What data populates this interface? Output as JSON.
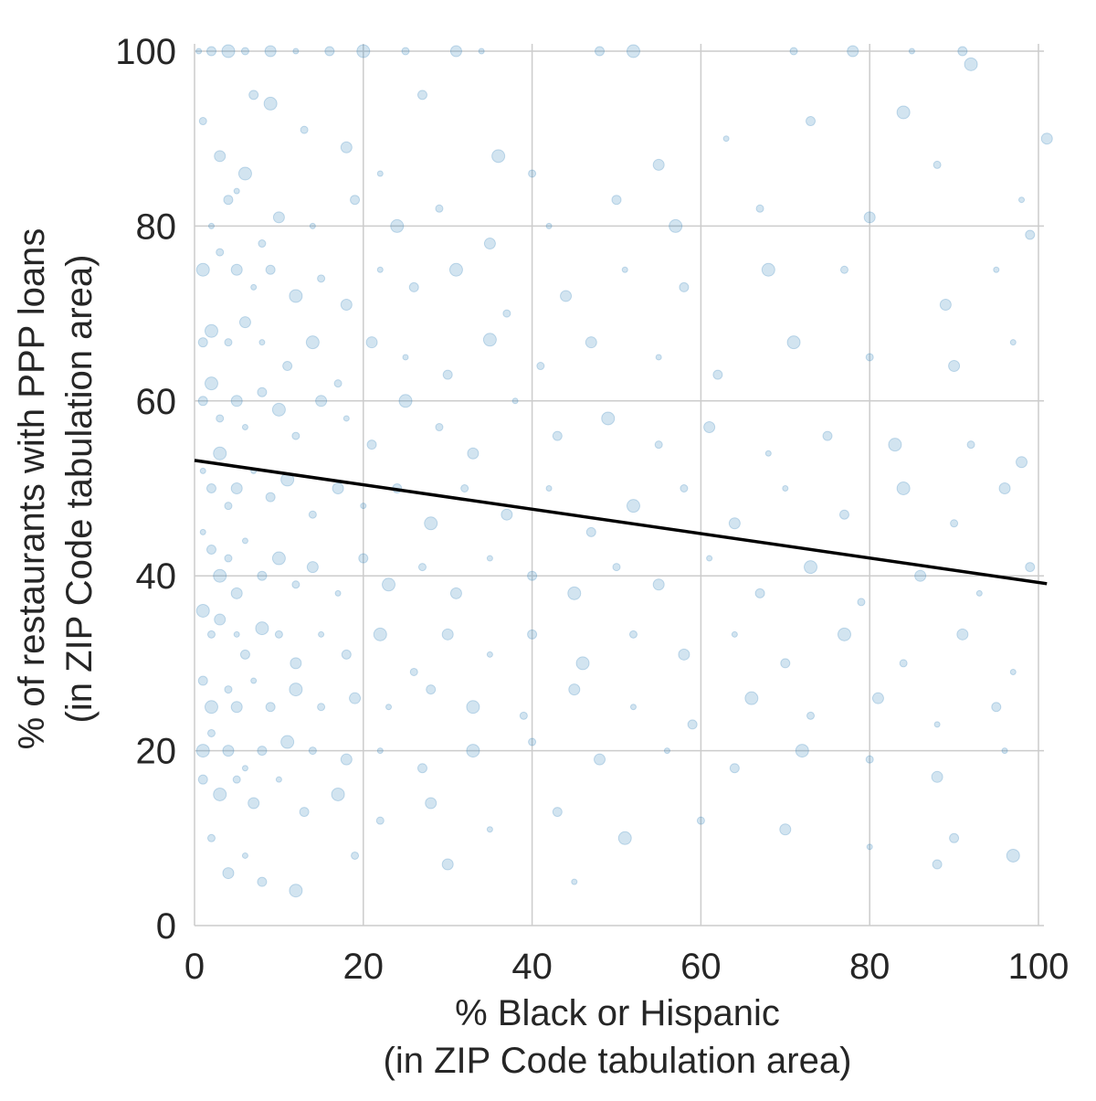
{
  "chart_data": {
    "type": "scatter",
    "title": "",
    "xlabel_lines": [
      "% Black or Hispanic",
      "(in ZIP Code tabulation area)"
    ],
    "ylabel_lines": [
      "% of restaurants with PPP loans",
      "(in ZIP Code tabulation area)"
    ],
    "xlim": [
      0,
      100
    ],
    "ylim": [
      0,
      100
    ],
    "xticks": [
      "0",
      "20",
      "40",
      "60",
      "80",
      "100"
    ],
    "yticks": [
      "0",
      "20",
      "40",
      "60",
      "80",
      "100"
    ],
    "grid": true,
    "legend": "none",
    "colors": {
      "points": "#1f77b4",
      "trendline": "#000000",
      "grid": "#cccccc"
    },
    "point_opacity": 0.2,
    "series": [
      {
        "type": "scatter",
        "note": "dense cloud of ZIP Code tabulation areas; concentrated at low x with y mostly between 20 and 70; visible horizontal bands at y = 16.7, 20, 25, 33.3, 40, 50, 66.7, 75, 80, 100",
        "points": [
          [
            0.5,
            100
          ],
          [
            2,
            100
          ],
          [
            4,
            100
          ],
          [
            6,
            100
          ],
          [
            9,
            100
          ],
          [
            12,
            100
          ],
          [
            16,
            100
          ],
          [
            20,
            100
          ],
          [
            25,
            100
          ],
          [
            31,
            100
          ],
          [
            34,
            100
          ],
          [
            48,
            100
          ],
          [
            52,
            100
          ],
          [
            71,
            100
          ],
          [
            78,
            100
          ],
          [
            85,
            100
          ],
          [
            91,
            100
          ],
          [
            92,
            98.5
          ],
          [
            1,
            92
          ],
          [
            3,
            88
          ],
          [
            5,
            84
          ],
          [
            7,
            95
          ],
          [
            9,
            94
          ],
          [
            13,
            91
          ],
          [
            18,
            89
          ],
          [
            22,
            86
          ],
          [
            27,
            95
          ],
          [
            36,
            88
          ],
          [
            40,
            86
          ],
          [
            55,
            87
          ],
          [
            63,
            90
          ],
          [
            73,
            92
          ],
          [
            84,
            93
          ],
          [
            88,
            87
          ],
          [
            101,
            90
          ],
          [
            2,
            80
          ],
          [
            4,
            83
          ],
          [
            6,
            86
          ],
          [
            8,
            78
          ],
          [
            10,
            81
          ],
          [
            14,
            80
          ],
          [
            19,
            83
          ],
          [
            24,
            80
          ],
          [
            29,
            82
          ],
          [
            35,
            78
          ],
          [
            42,
            80
          ],
          [
            50,
            83
          ],
          [
            57,
            80
          ],
          [
            67,
            82
          ],
          [
            80,
            81
          ],
          [
            98,
            83
          ],
          [
            99,
            79
          ],
          [
            1,
            75
          ],
          [
            3,
            77
          ],
          [
            5,
            75
          ],
          [
            7,
            73
          ],
          [
            9,
            75
          ],
          [
            12,
            72
          ],
          [
            15,
            74
          ],
          [
            18,
            71
          ],
          [
            22,
            75
          ],
          [
            26,
            73
          ],
          [
            31,
            75
          ],
          [
            37,
            70
          ],
          [
            44,
            72
          ],
          [
            51,
            75
          ],
          [
            58,
            73
          ],
          [
            68,
            75
          ],
          [
            77,
            75
          ],
          [
            89,
            71
          ],
          [
            95,
            75
          ],
          [
            1,
            66.7
          ],
          [
            2,
            68
          ],
          [
            4,
            66.7
          ],
          [
            6,
            69
          ],
          [
            8,
            66.7
          ],
          [
            11,
            64
          ],
          [
            14,
            66.7
          ],
          [
            17,
            62
          ],
          [
            21,
            66.7
          ],
          [
            25,
            65
          ],
          [
            30,
            63
          ],
          [
            35,
            67
          ],
          [
            41,
            64
          ],
          [
            47,
            66.7
          ],
          [
            55,
            65
          ],
          [
            62,
            63
          ],
          [
            71,
            66.7
          ],
          [
            80,
            65
          ],
          [
            90,
            64
          ],
          [
            97,
            66.7
          ],
          [
            1,
            60
          ],
          [
            2,
            62
          ],
          [
            3,
            58
          ],
          [
            5,
            60
          ],
          [
            6,
            57
          ],
          [
            8,
            61
          ],
          [
            10,
            59
          ],
          [
            12,
            56
          ],
          [
            15,
            60
          ],
          [
            18,
            58
          ],
          [
            21,
            55
          ],
          [
            25,
            60
          ],
          [
            29,
            57
          ],
          [
            33,
            54
          ],
          [
            38,
            60
          ],
          [
            43,
            56
          ],
          [
            49,
            58
          ],
          [
            55,
            55
          ],
          [
            61,
            57
          ],
          [
            68,
            54
          ],
          [
            75,
            56
          ],
          [
            83,
            55
          ],
          [
            92,
            55
          ],
          [
            98,
            53
          ],
          [
            1,
            52
          ],
          [
            2,
            50
          ],
          [
            3,
            54
          ],
          [
            4,
            48
          ],
          [
            5,
            50
          ],
          [
            7,
            52
          ],
          [
            9,
            49
          ],
          [
            11,
            51
          ],
          [
            14,
            47
          ],
          [
            17,
            50
          ],
          [
            20,
            48
          ],
          [
            24,
            50
          ],
          [
            28,
            46
          ],
          [
            32,
            50
          ],
          [
            37,
            47
          ],
          [
            42,
            50
          ],
          [
            47,
            45
          ],
          [
            52,
            48
          ],
          [
            58,
            50
          ],
          [
            64,
            46
          ],
          [
            70,
            50
          ],
          [
            77,
            47
          ],
          [
            84,
            50
          ],
          [
            90,
            46
          ],
          [
            96,
            50
          ],
          [
            1,
            45
          ],
          [
            2,
            43
          ],
          [
            3,
            40
          ],
          [
            4,
            42
          ],
          [
            5,
            38
          ],
          [
            6,
            44
          ],
          [
            8,
            40
          ],
          [
            10,
            42
          ],
          [
            12,
            39
          ],
          [
            14,
            41
          ],
          [
            17,
            38
          ],
          [
            20,
            42
          ],
          [
            23,
            39
          ],
          [
            27,
            41
          ],
          [
            31,
            38
          ],
          [
            35,
            42
          ],
          [
            40,
            40
          ],
          [
            45,
            38
          ],
          [
            50,
            41
          ],
          [
            55,
            39
          ],
          [
            61,
            42
          ],
          [
            67,
            38
          ],
          [
            73,
            41
          ],
          [
            79,
            37
          ],
          [
            86,
            40
          ],
          [
            93,
            38
          ],
          [
            99,
            41
          ],
          [
            1,
            36
          ],
          [
            2,
            33.3
          ],
          [
            3,
            35
          ],
          [
            5,
            33.3
          ],
          [
            6,
            31
          ],
          [
            8,
            34
          ],
          [
            10,
            33.3
          ],
          [
            12,
            30
          ],
          [
            15,
            33.3
          ],
          [
            18,
            31
          ],
          [
            22,
            33.3
          ],
          [
            26,
            29
          ],
          [
            30,
            33.3
          ],
          [
            35,
            31
          ],
          [
            40,
            33.3
          ],
          [
            46,
            30
          ],
          [
            52,
            33.3
          ],
          [
            58,
            31
          ],
          [
            64,
            33.3
          ],
          [
            70,
            30
          ],
          [
            77,
            33.3
          ],
          [
            84,
            30
          ],
          [
            91,
            33.3
          ],
          [
            97,
            29
          ],
          [
            1,
            28
          ],
          [
            2,
            25
          ],
          [
            4,
            27
          ],
          [
            5,
            25
          ],
          [
            7,
            28
          ],
          [
            9,
            25
          ],
          [
            12,
            27
          ],
          [
            15,
            25
          ],
          [
            19,
            26
          ],
          [
            23,
            25
          ],
          [
            28,
            27
          ],
          [
            33,
            25
          ],
          [
            39,
            24
          ],
          [
            45,
            27
          ],
          [
            52,
            25
          ],
          [
            59,
            23
          ],
          [
            66,
            26
          ],
          [
            73,
            24
          ],
          [
            81,
            26
          ],
          [
            88,
            23
          ],
          [
            95,
            25
          ],
          [
            1,
            20
          ],
          [
            2,
            22
          ],
          [
            4,
            20
          ],
          [
            6,
            18
          ],
          [
            8,
            20
          ],
          [
            11,
            21
          ],
          [
            14,
            20
          ],
          [
            18,
            19
          ],
          [
            22,
            20
          ],
          [
            27,
            18
          ],
          [
            33,
            20
          ],
          [
            40,
            21
          ],
          [
            48,
            19
          ],
          [
            56,
            20
          ],
          [
            64,
            18
          ],
          [
            72,
            20
          ],
          [
            80,
            19
          ],
          [
            88,
            17
          ],
          [
            96,
            20
          ],
          [
            1,
            16.7
          ],
          [
            3,
            15
          ],
          [
            5,
            16.7
          ],
          [
            7,
            14
          ],
          [
            10,
            16.7
          ],
          [
            13,
            13
          ],
          [
            17,
            15
          ],
          [
            22,
            12
          ],
          [
            28,
            14
          ],
          [
            35,
            11
          ],
          [
            43,
            13
          ],
          [
            51,
            10
          ],
          [
            60,
            12
          ],
          [
            70,
            11
          ],
          [
            80,
            9
          ],
          [
            90,
            10
          ],
          [
            97,
            8
          ],
          [
            2,
            10
          ],
          [
            4,
            6
          ],
          [
            6,
            8
          ],
          [
            8,
            5
          ],
          [
            12,
            4
          ],
          [
            19,
            8
          ],
          [
            30,
            7
          ],
          [
            45,
            5
          ],
          [
            88,
            7
          ]
        ]
      },
      {
        "type": "line",
        "note": "fitted linear trend",
        "x": [
          0,
          101
        ],
        "y": [
          53.2,
          39.1
        ]
      }
    ]
  }
}
